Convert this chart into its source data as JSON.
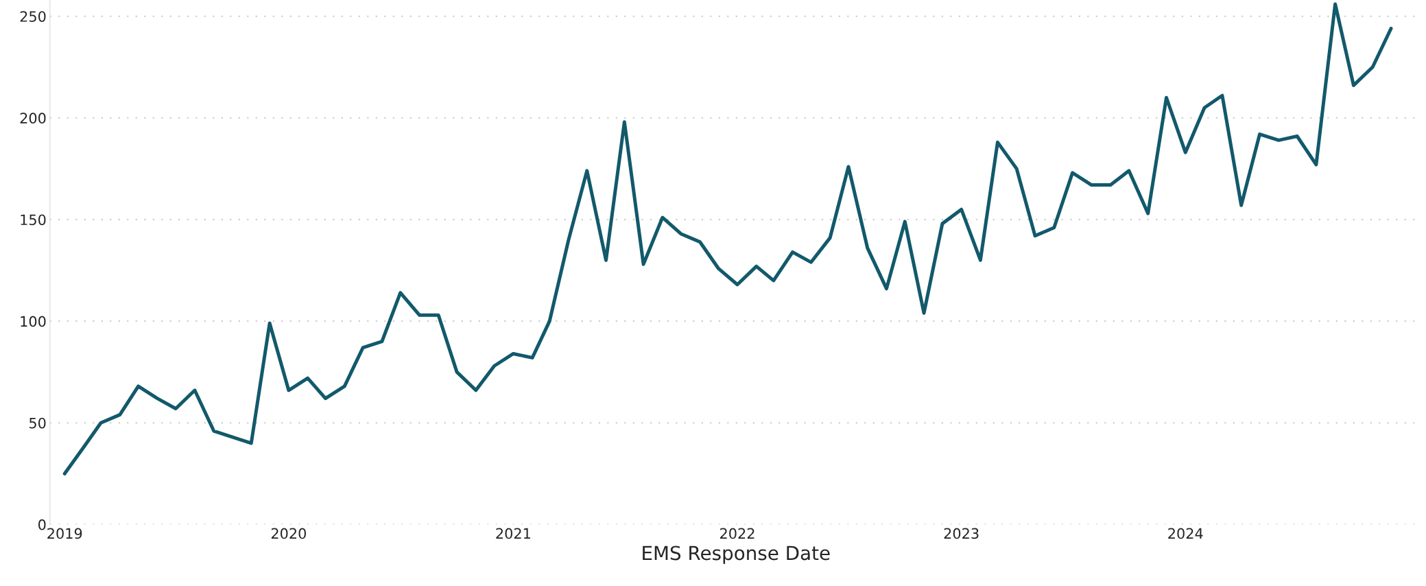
{
  "chart_data": {
    "type": "line",
    "xlabel": "EMS Response Date",
    "x": [
      "2019-01",
      "2019-02",
      "2019-03",
      "2019-04",
      "2019-05",
      "2019-06",
      "2019-07",
      "2019-08",
      "2019-09",
      "2019-10",
      "2019-11",
      "2019-12",
      "2020-01",
      "2020-02",
      "2020-03",
      "2020-04",
      "2020-05",
      "2020-06",
      "2020-07",
      "2020-08",
      "2020-09",
      "2020-10",
      "2020-11",
      "2020-12",
      "2021-01",
      "2021-02",
      "2021-03",
      "2021-04",
      "2021-05",
      "2021-06",
      "2021-07",
      "2021-08",
      "2021-09",
      "2021-10",
      "2021-11",
      "2021-12",
      "2022-01",
      "2022-02",
      "2022-03",
      "2022-04",
      "2022-05",
      "2022-06",
      "2022-07",
      "2022-08",
      "2022-09",
      "2022-10",
      "2022-11",
      "2022-12",
      "2023-01",
      "2023-02",
      "2023-03",
      "2023-04",
      "2023-05",
      "2023-06",
      "2023-07",
      "2023-08",
      "2023-09",
      "2023-10",
      "2023-11",
      "2023-12",
      "2024-01",
      "2024-02",
      "2024-03",
      "2024-04",
      "2024-05",
      "2024-06",
      "2024-07",
      "2024-08",
      "2024-09",
      "2024-10",
      "2024-11",
      "2024-12"
    ],
    "series": [
      {
        "color": "#12596b",
        "values": [
          25,
          38,
          50,
          54,
          68,
          62,
          57,
          66,
          46,
          43,
          40,
          99,
          66,
          72,
          62,
          68,
          87,
          90,
          114,
          103,
          103,
          75,
          66,
          78,
          84,
          82,
          100,
          140,
          174,
          130,
          198,
          128,
          151,
          143,
          139,
          126,
          118,
          127,
          120,
          134,
          129,
          141,
          176,
          136,
          116,
          149,
          104,
          148,
          155,
          130,
          188,
          175,
          142,
          146,
          173,
          167,
          167,
          174,
          153,
          210,
          183,
          205,
          211,
          157,
          192,
          189,
          191,
          177,
          256,
          216,
          225,
          244
        ]
      }
    ],
    "xlim": [
      "2018-12-08",
      "2025-01-20"
    ],
    "xticks": [
      "2019",
      "2020",
      "2021",
      "2022",
      "2023",
      "2024"
    ],
    "ylim": [
      0,
      258
    ],
    "yticks": [
      0,
      50,
      100,
      150,
      200,
      250
    ],
    "grid": "y",
    "legend": false,
    "marker": "none",
    "line_style": "solid"
  }
}
